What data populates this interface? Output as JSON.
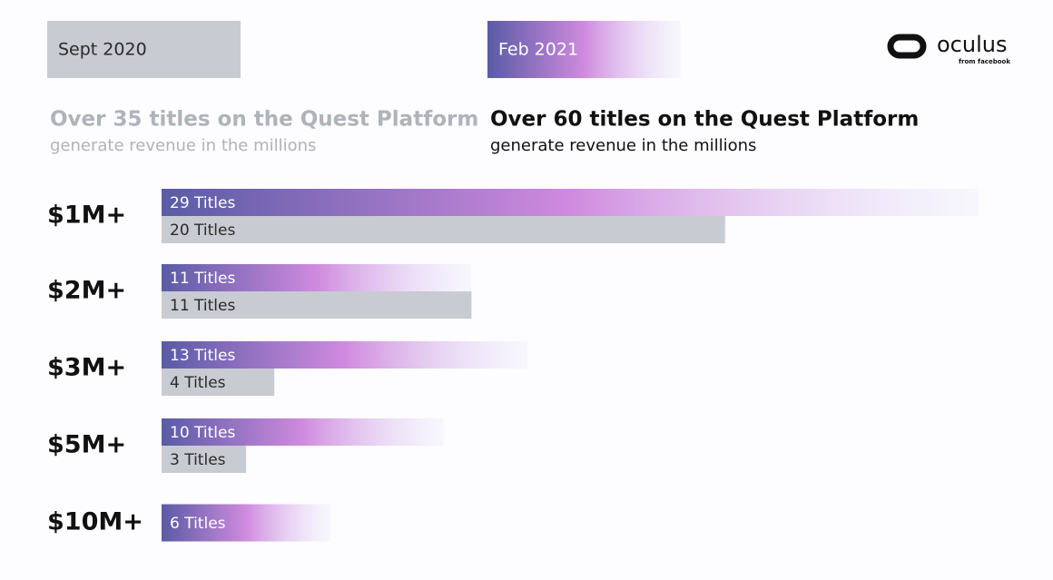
{
  "chart_data": {
    "type": "bar",
    "categories": [
      "$1M+",
      "$2M+",
      "$3M+",
      "$5M+",
      "$10M+"
    ],
    "series": [
      {
        "name": "Sept 2020",
        "color": "#c8cbd1",
        "label_color": "#2a2a2a",
        "headline": "Over 35 titles on the Quest Platform",
        "subline": "generate revenue in the millions",
        "text_color": "#afb3ba",
        "values": [
          20,
          11,
          4,
          3,
          null
        ],
        "value_labels": [
          "20 Titles",
          "11 Titles",
          "4 Titles",
          "3 Titles",
          null
        ]
      },
      {
        "name": "Feb 2021",
        "color": [
          "#5a5ba6",
          "#cf8ade",
          "#e9ebfb"
        ],
        "label_color": "#ffffff",
        "headline": "Over 60 titles on the Quest Platform",
        "subline": "generate revenue in the millions",
        "text_color": "#111111",
        "values": [
          29,
          11,
          13,
          10,
          6
        ],
        "value_labels": [
          "29 Titles",
          "11 Titles",
          "13 Titles",
          "10 Titles",
          "6 Titles"
        ]
      }
    ]
  },
  "logo": {
    "name": "oculus",
    "tagline": "from facebook"
  }
}
